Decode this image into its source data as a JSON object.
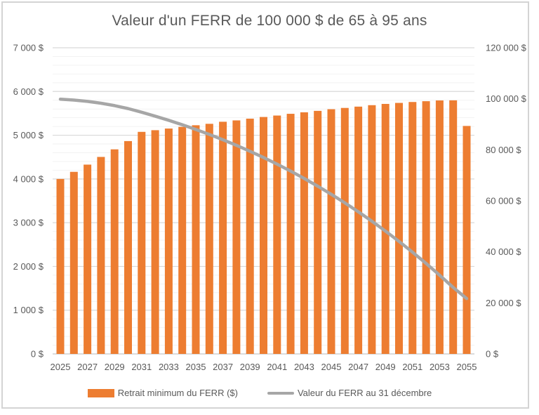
{
  "chart_data": {
    "type": "combo-bar-line",
    "title": "Valeur d'un FERR de 100 000 $ de 65 à 95 ans",
    "categories": [
      "2025",
      "2026",
      "2027",
      "2028",
      "2029",
      "2030",
      "2031",
      "2032",
      "2033",
      "2034",
      "2035",
      "2036",
      "2037",
      "2038",
      "2039",
      "2040",
      "2041",
      "2042",
      "2043",
      "2044",
      "2045",
      "2046",
      "2047",
      "2048",
      "2049",
      "2050",
      "2051",
      "2052",
      "2053",
      "2054",
      "2055"
    ],
    "series": [
      {
        "name": "Retrait minimum du FERR ($)",
        "type": "bar",
        "axis": "left",
        "color": "#ED7D31",
        "values": [
          4000,
          4163,
          4328,
          4504,
          4677,
          4866,
          5077,
          5115,
          5153,
          5191,
          5228,
          5261,
          5308,
          5339,
          5379,
          5417,
          5450,
          5490,
          5524,
          5557,
          5595,
          5624,
          5654,
          5687,
          5716,
          5739,
          5760,
          5778,
          5795,
          5798,
          5212
        ]
      },
      {
        "name": "Valeur du FERR au 31 décembre",
        "type": "line",
        "axis": "right",
        "color": "#A6A6A6",
        "values": [
          99840,
          99504,
          98983,
          98258,
          97324,
          96156,
          94722,
          93191,
          91560,
          89824,
          87980,
          86028,
          83949,
          81754,
          79430,
          76974,
          74385,
          71651,
          68772,
          65744,
          62555,
          59208,
          55696,
          52010,
          48146,
          44103,
          39877,
          35463,
          30855,
          26059,
          21681
        ]
      }
    ],
    "left_axis": {
      "min": 0,
      "max": 7000,
      "major_unit": 1000,
      "minor_unit": 200,
      "tick_labels": [
        "0 $",
        "1 000 $",
        "2 000 $",
        "3 000 $",
        "4 000 $",
        "5 000 $",
        "6 000 $",
        "7 000 $"
      ]
    },
    "right_axis": {
      "min": 0,
      "max": 120000,
      "major_unit": 20000,
      "tick_labels": [
        "0 $",
        "20 000 $",
        "40 000 $",
        "60 000 $",
        "80 000 $",
        "100 000 $",
        "120 000 $"
      ]
    },
    "x_axis": {
      "tick_labels": [
        "2025",
        "2027",
        "2029",
        "2031",
        "2033",
        "2035",
        "2037",
        "2039",
        "2041",
        "2043",
        "2045",
        "2047",
        "2049",
        "2051",
        "2053",
        "2055"
      ]
    },
    "legend": {
      "position": "bottom"
    },
    "grid": {
      "major": true,
      "minor": true
    },
    "colors": {
      "text": "#595959",
      "gridline_major": "#D9D9D9",
      "gridline_minor": "#F2F2F2",
      "axis_line": "#CFCFCF",
      "frame_border": "#D4D4D4"
    }
  }
}
